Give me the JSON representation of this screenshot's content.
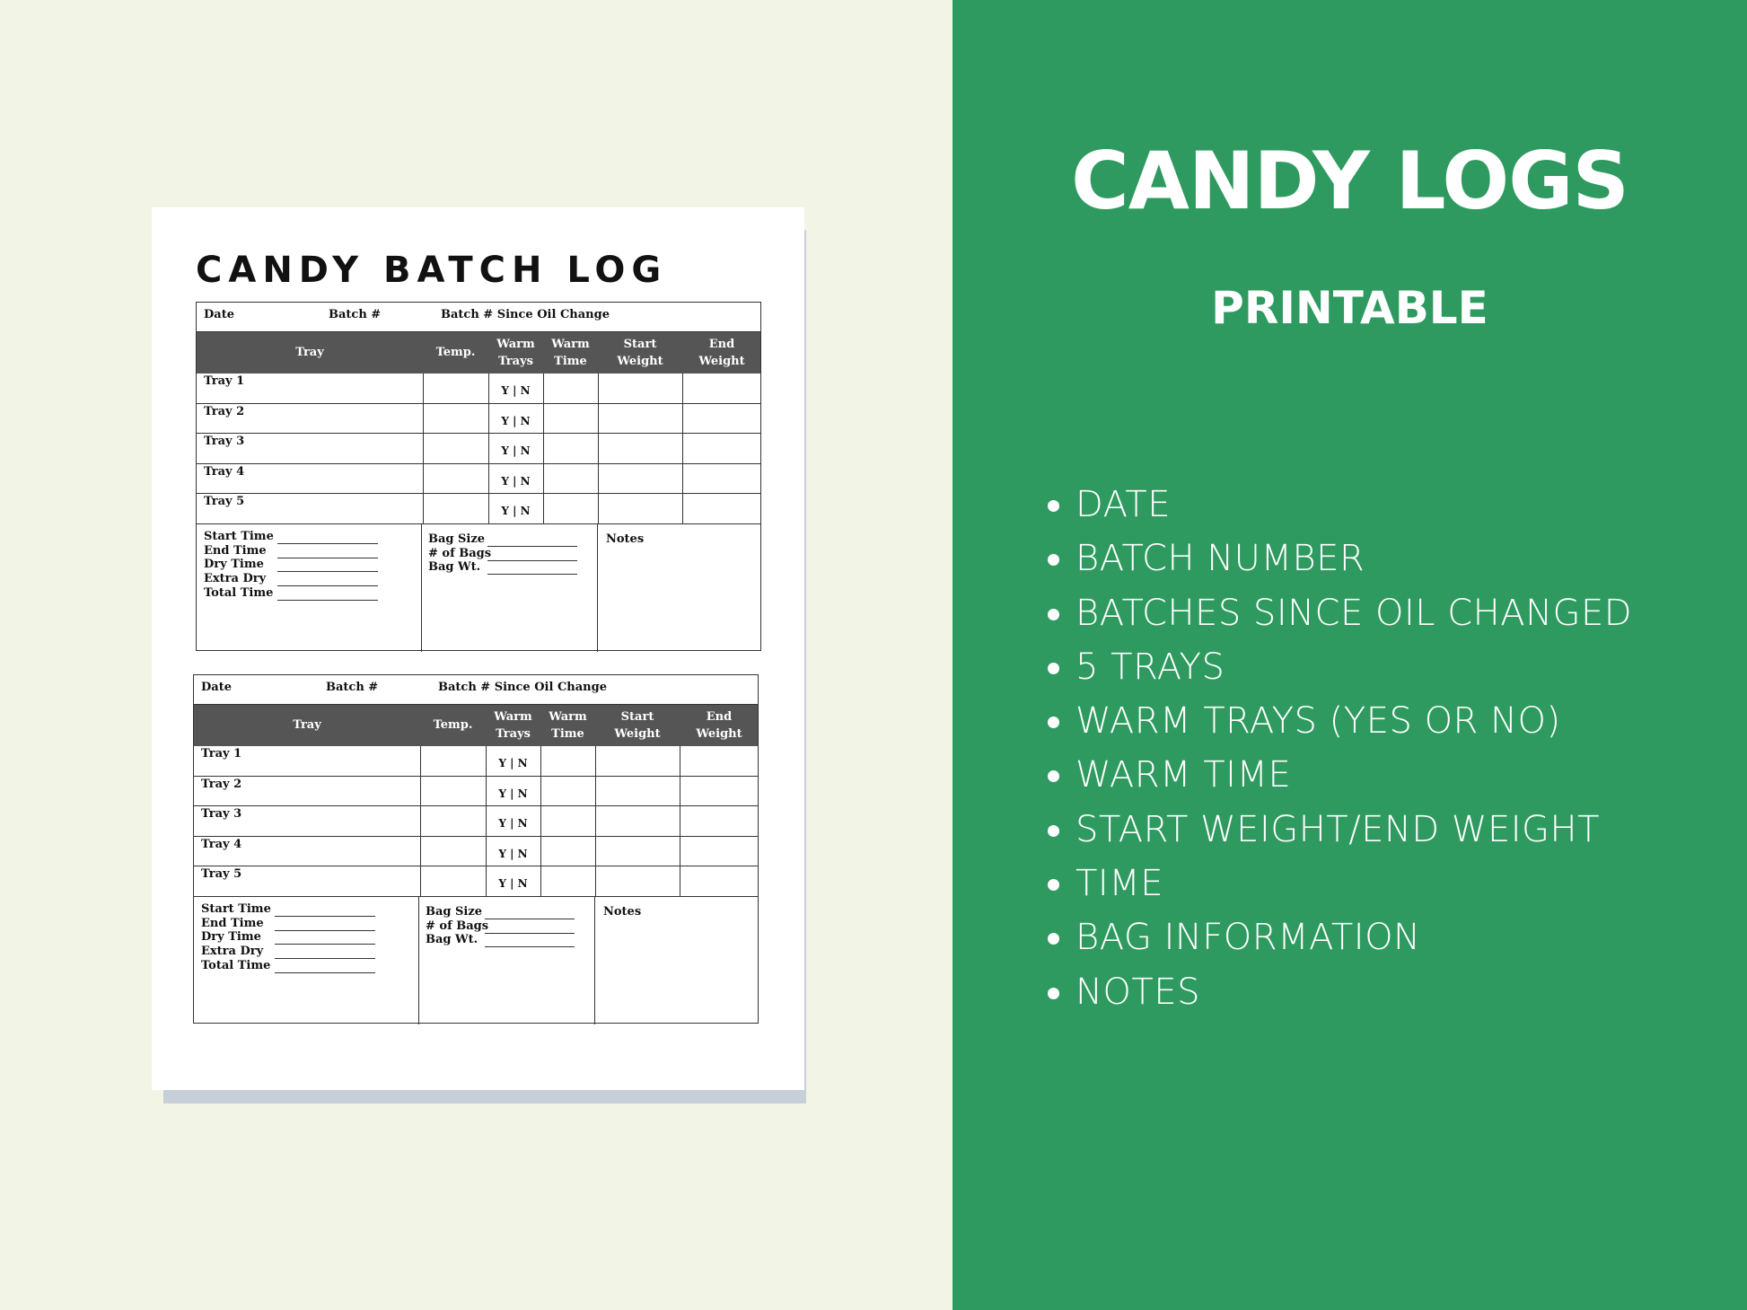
{
  "product": {
    "title": "CANDY LOGS",
    "subtitle": "PRINTABLE"
  },
  "features": [
    "DATE",
    "BATCH NUMBER",
    "BATCHES SINCE OIL CHANGED",
    "5 TRAYS",
    "WARM TRAYS (YES OR NO)",
    "WARM TIME",
    "START WEIGHT/END WEIGHT",
    "TIME",
    "BAG INFORMATION",
    "NOTES"
  ],
  "colors": {
    "panel_green": "#2e9a5f",
    "left_bg": "#f2f5e6",
    "header_gray": "#555555"
  },
  "sheet": {
    "title": "CANDY BATCH LOG",
    "top_fields": [
      "Date",
      "Batch #",
      "Batch # Since Oil Change"
    ],
    "columns": [
      "Tray",
      "Temp.",
      "Warm Trays",
      "Warm Time",
      "Start Weight",
      "End Weight"
    ],
    "rows": [
      "Tray 1",
      "Tray 2",
      "Tray 3",
      "Tray 4",
      "Tray 5"
    ],
    "yn": "Y | N",
    "time_fields": [
      "Start Time",
      "End Time",
      "Dry Time",
      "Extra Dry",
      "Total Time"
    ],
    "bag_fields": [
      "Bag Size",
      "# of Bags",
      "Bag Wt."
    ],
    "notes": "Notes"
  }
}
